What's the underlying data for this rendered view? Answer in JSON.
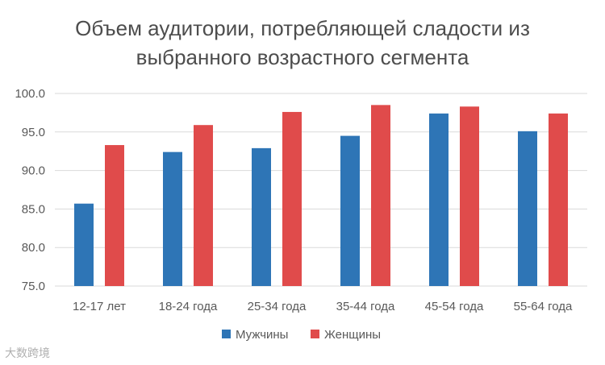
{
  "chart_data": {
    "type": "bar",
    "title_line1": "Объем аудитории, потребляющей сладости из",
    "title_line2": "выбранного возрастного сегмента",
    "categories": [
      "12-17 лет",
      "18-24 года",
      "25-34 года",
      "35-44 года",
      "45-54 года",
      "55-64 года"
    ],
    "series": [
      {
        "name": "Мужчины",
        "color": "#2e75b6",
        "values": [
          85.7,
          92.4,
          92.9,
          94.5,
          97.4,
          95.1
        ]
      },
      {
        "name": "Женщины",
        "color": "#e04b4b",
        "values": [
          93.3,
          95.9,
          97.6,
          98.5,
          98.3,
          97.4
        ]
      }
    ],
    "ylim": [
      75,
      100
    ],
    "yticks": [
      "75.0",
      "80.0",
      "85.0",
      "90.0",
      "95.0",
      "100.0"
    ],
    "grid": true,
    "legend": "bottom"
  },
  "watermark": "大数跨境"
}
